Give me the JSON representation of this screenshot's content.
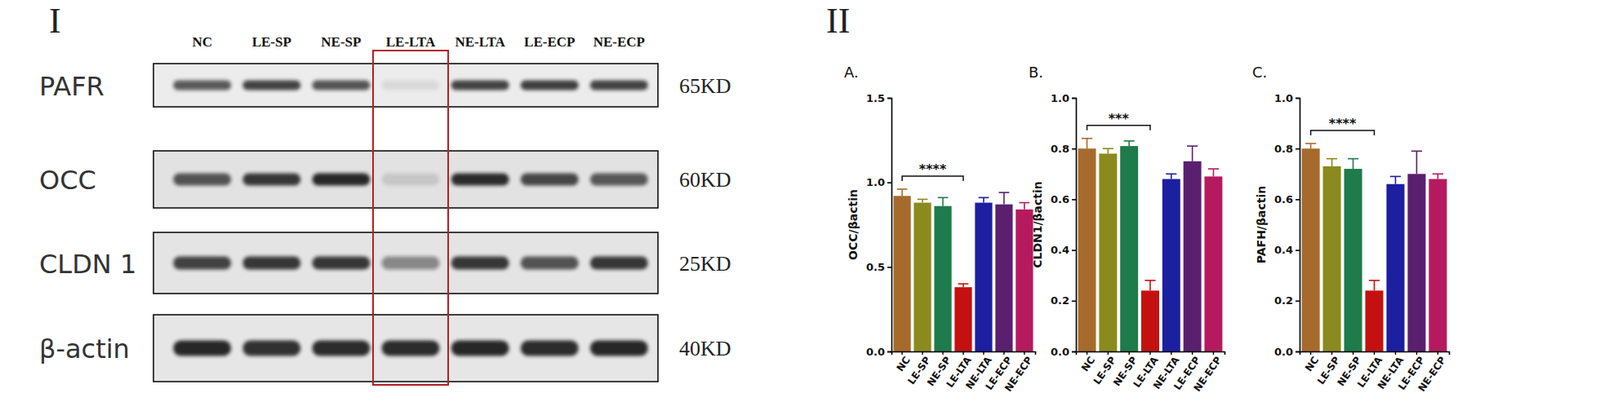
{
  "panel_labels": [
    "I",
    "II"
  ],
  "blot": {
    "lanes": [
      "NC",
      "LE-SP",
      "NE-SP",
      "LE-LTA",
      "NE-LTA",
      "LE-ECP",
      "NE-ECP"
    ],
    "highlight": "LE-LTA",
    "rows": [
      {
        "label": "PAFR",
        "size": "65KD",
        "intensities": [
          0.7,
          0.8,
          0.72,
          0.08,
          0.8,
          0.82,
          0.8
        ]
      },
      {
        "label": "OCC",
        "size": "60KD",
        "intensities": [
          0.72,
          0.85,
          0.95,
          0.12,
          0.9,
          0.78,
          0.7
        ]
      },
      {
        "label": "CLDN 1",
        "size": "25KD",
        "intensities": [
          0.8,
          0.85,
          0.85,
          0.45,
          0.85,
          0.72,
          0.85
        ]
      },
      {
        "label": "β-actin",
        "size": "40KD",
        "intensities": [
          0.92,
          0.88,
          0.9,
          0.9,
          0.92,
          0.9,
          0.92
        ]
      }
    ]
  },
  "chart_data": [
    {
      "type": "bar",
      "title": "A.",
      "y_label": "OCC/βactin",
      "categories": [
        "NC",
        "LE-SP",
        "NE-SP",
        "LE-LTA",
        "NE-LTA",
        "LE-ECP",
        "NE-ECP"
      ],
      "values": [
        0.92,
        0.88,
        0.86,
        0.38,
        0.88,
        0.87,
        0.84
      ],
      "errors": [
        0.04,
        0.02,
        0.05,
        0.02,
        0.03,
        0.07,
        0.04
      ],
      "colors": [
        "#a66b2c",
        "#8a8a1e",
        "#1e7b4b",
        "#c41010",
        "#1c1fa0",
        "#5a1f6e",
        "#b51a5e"
      ],
      "ylim": [
        0,
        1.5
      ],
      "yticks": [
        {
          "value": 0,
          "label": "0.0"
        },
        0.5,
        {
          "value": 1,
          "label": "1.0"
        },
        1.5
      ],
      "annotations": [
        {
          "between": [
            "NC",
            "LE-LTA"
          ],
          "label": "****"
        }
      ]
    },
    {
      "type": "bar",
      "title": "B.",
      "y_label": "CLDN1/βactin",
      "categories": [
        "NC",
        "LE-SP",
        "NE-SP",
        "LE-LTA",
        "NE-LTA",
        "LE-ECP",
        "NE-ECP"
      ],
      "values": [
        0.8,
        0.78,
        0.81,
        0.24,
        0.68,
        0.75,
        0.69
      ],
      "errors": [
        0.04,
        0.02,
        0.02,
        0.04,
        0.02,
        0.06,
        0.03
      ],
      "colors": [
        "#a66b2c",
        "#8a8a1e",
        "#1e7b4b",
        "#c41010",
        "#1c1fa0",
        "#5a1f6e",
        "#b51a5e"
      ],
      "ylim": [
        0,
        1
      ],
      "yticks": [
        {
          "value": 0,
          "label": "0.0"
        },
        0.2,
        0.4,
        0.6,
        0.8,
        {
          "value": 1,
          "label": "1.0"
        }
      ],
      "annotations": [
        {
          "between": [
            "NC",
            "LE-LTA"
          ],
          "label": "***"
        }
      ]
    },
    {
      "type": "bar",
      "title": "C.",
      "y_label": "PAFH/βactin",
      "categories": [
        "NC",
        "LE-SP",
        "NE-SP",
        "LE-LTA",
        "NE-LTA",
        "LE-ECP",
        "NE-ECP"
      ],
      "values": [
        0.8,
        0.73,
        0.72,
        0.24,
        0.66,
        0.7,
        0.68
      ],
      "errors": [
        0.02,
        0.03,
        0.04,
        0.04,
        0.03,
        0.09,
        0.02
      ],
      "colors": [
        "#a66b2c",
        "#8a8a1e",
        "#1e7b4b",
        "#c41010",
        "#1c1fa0",
        "#5a1f6e",
        "#b51a5e"
      ],
      "ylim": [
        0,
        1
      ],
      "yticks": [
        {
          "value": 0,
          "label": "0.0"
        },
        0.2,
        0.4,
        0.6,
        0.8,
        {
          "value": 1,
          "label": "1.0"
        }
      ],
      "annotations": [
        {
          "between": [
            "NC",
            "LE-LTA"
          ],
          "label": "****"
        }
      ]
    }
  ]
}
